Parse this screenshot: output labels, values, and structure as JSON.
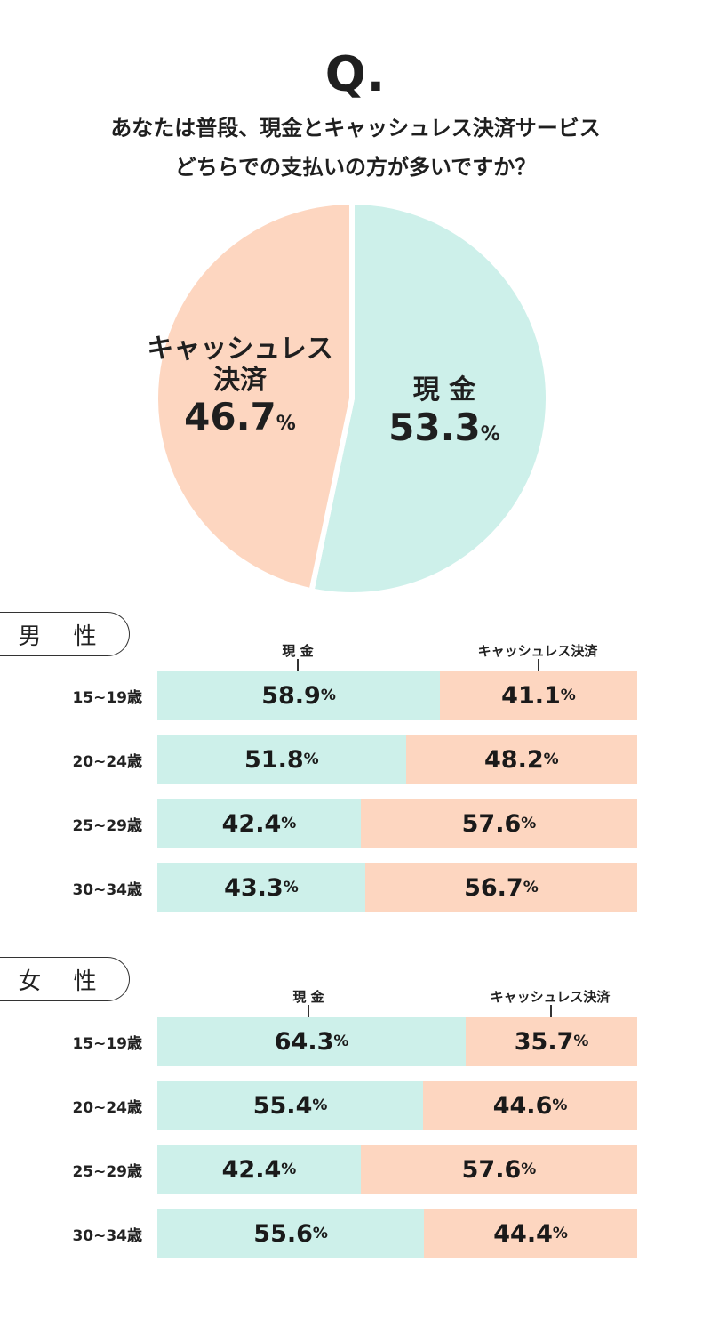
{
  "header": {
    "q_mark": "Q.",
    "question_line1": "あなたは普段、現金とキャッシュレス決済サービス",
    "question_line2": "どちらでの支払いの方が多いですか？"
  },
  "chart_data": [
    {
      "type": "pie",
      "slices": [
        {
          "label": "現 金",
          "value": 53.3,
          "value_text": "53.3",
          "color": "#cdf0ea"
        },
        {
          "label_line1": "キャッシュレス",
          "label_line2": "決済",
          "value": 46.7,
          "value_text": "46.7",
          "color": "#fdd6c0"
        }
      ],
      "unit": "%"
    },
    {
      "type": "bar",
      "title": "男 性",
      "stacked": true,
      "orientation": "horizontal",
      "series_names": [
        "現 金",
        "キャッシュレス決済"
      ],
      "categories": [
        "15~19歳",
        "20~24歳",
        "25~29歳",
        "30~34歳"
      ],
      "series": [
        {
          "name": "現 金",
          "values": [
            58.9,
            51.8,
            42.4,
            43.3
          ],
          "labels": [
            "58.9",
            "51.8",
            "42.4",
            "43.3"
          ]
        },
        {
          "name": "キャッシュレス決済",
          "values": [
            41.1,
            48.2,
            57.6,
            56.7
          ],
          "labels": [
            "41.1",
            "48.2",
            "57.6",
            "56.7"
          ]
        }
      ],
      "unit": "%"
    },
    {
      "type": "bar",
      "title": "女 性",
      "stacked": true,
      "orientation": "horizontal",
      "series_names": [
        "現 金",
        "キャッシュレス決済"
      ],
      "categories": [
        "15~19歳",
        "20~24歳",
        "25~29歳",
        "30~34歳"
      ],
      "series": [
        {
          "name": "現 金",
          "values": [
            64.3,
            55.4,
            42.4,
            55.6
          ],
          "labels": [
            "64.3",
            "55.4",
            "42.4",
            "55.6"
          ]
        },
        {
          "name": "キャッシュレス決済",
          "values": [
            35.7,
            44.6,
            57.6,
            44.4
          ],
          "labels": [
            "35.7",
            "44.6",
            "57.6",
            "44.4"
          ]
        }
      ],
      "unit": "%"
    }
  ],
  "colors": {
    "cash": "#cdf0ea",
    "cashless": "#fdd6c0",
    "text": "#1f1f1f"
  }
}
